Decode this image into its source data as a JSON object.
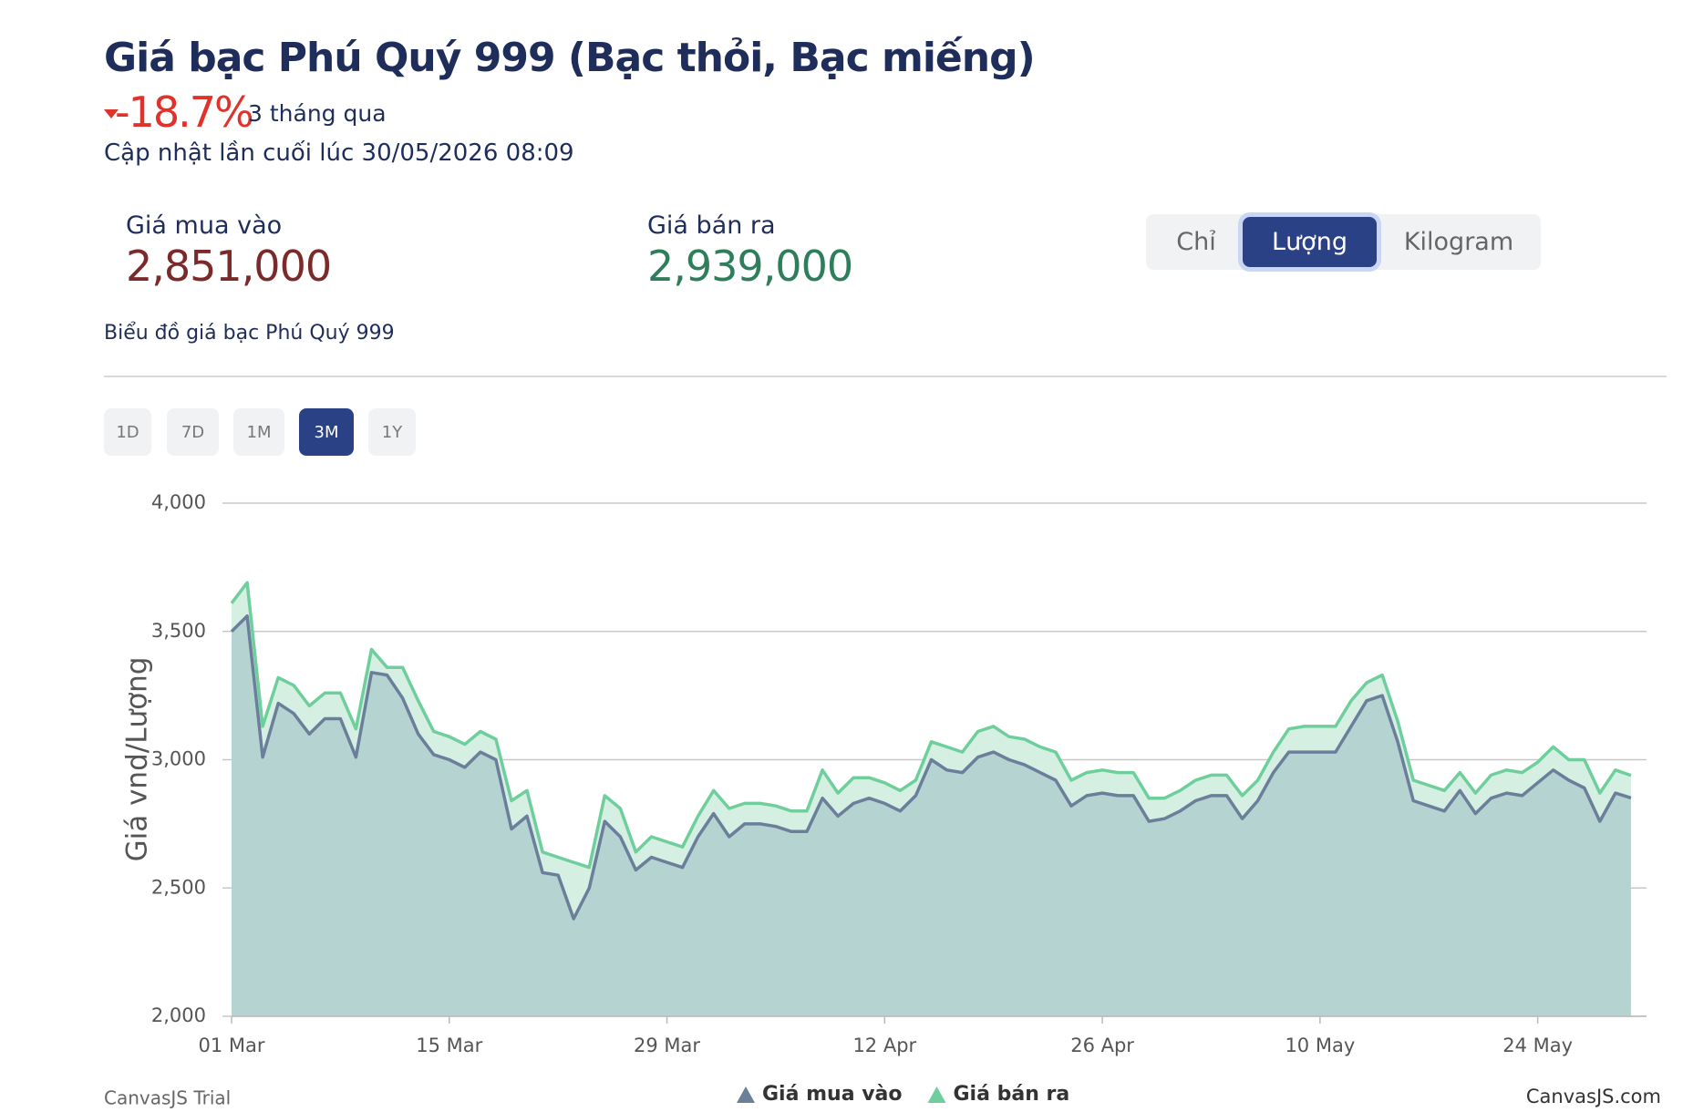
{
  "header": {
    "title": "Giá bạc Phú Quý 999 (Bạc thỏi, Bạc miếng)",
    "change": "-18.7%",
    "period": "3 tháng qua",
    "updated": "Cập nhật lần cuối lúc 30/05/2026 08:09"
  },
  "prices": {
    "buy_label": "Giá mua vào",
    "buy_value": "2,851,000",
    "sell_label": "Giá bán ra",
    "sell_value": "2,939,000"
  },
  "unit_tabs": {
    "items": [
      "Chỉ",
      "Lượng",
      "Kilogram"
    ],
    "active": 1
  },
  "chart_subtitle": "Biểu đồ giá bạc Phú Quý 999",
  "range_tabs": {
    "items": [
      "1D",
      "7D",
      "1M",
      "3M",
      "1Y"
    ],
    "active": 3
  },
  "chart_data": {
    "type": "area",
    "y_label": "Giá vnd/Lượng",
    "x": [
      "01 Mar",
      "02 Mar",
      "03 Mar",
      "04 Mar",
      "05 Mar",
      "06 Mar",
      "07 Mar",
      "08 Mar",
      "09 Mar",
      "10 Mar",
      "11 Mar",
      "12 Mar",
      "13 Mar",
      "14 Mar",
      "15 Mar",
      "16 Mar",
      "17 Mar",
      "18 Mar",
      "19 Mar",
      "20 Mar",
      "21 Mar",
      "22 Mar",
      "23 Mar",
      "24 Mar",
      "25 Mar",
      "26 Mar",
      "27 Mar",
      "28 Mar",
      "29 Mar",
      "30 Mar",
      "31 Mar",
      "01 Apr",
      "02 Apr",
      "03 Apr",
      "04 Apr",
      "05 Apr",
      "06 Apr",
      "07 Apr",
      "08 Apr",
      "09 Apr",
      "10 Apr",
      "11 Apr",
      "12 Apr",
      "13 Apr",
      "14 Apr",
      "15 Apr",
      "16 Apr",
      "17 Apr",
      "18 Apr",
      "19 Apr",
      "20 Apr",
      "21 Apr",
      "22 Apr",
      "23 Apr",
      "24 Apr",
      "25 Apr",
      "26 Apr",
      "27 Apr",
      "28 Apr",
      "29 Apr",
      "30 Apr",
      "01 May",
      "02 May",
      "03 May",
      "04 May",
      "05 May",
      "06 May",
      "07 May",
      "08 May",
      "09 May",
      "10 May",
      "11 May",
      "12 May",
      "13 May",
      "14 May",
      "15 May",
      "16 May",
      "17 May",
      "18 May",
      "19 May",
      "20 May",
      "21 May",
      "22 May",
      "23 May",
      "24 May",
      "25 May",
      "26 May",
      "27 May",
      "28 May",
      "29 May",
      "30 May"
    ],
    "series": [
      {
        "name": "Giá mua vào",
        "color": "#6b7f9b",
        "fill": "#b5d4d1",
        "values": [
          3500,
          3560,
          3010,
          3220,
          3180,
          3100,
          3160,
          3160,
          3010,
          3340,
          3330,
          3240,
          3100,
          3020,
          3000,
          2970,
          3030,
          3000,
          2730,
          2780,
          2560,
          2550,
          2380,
          2500,
          2760,
          2700,
          2570,
          2620,
          2600,
          2580,
          2700,
          2790,
          2700,
          2750,
          2750,
          2740,
          2720,
          2720,
          2850,
          2780,
          2830,
          2850,
          2830,
          2800,
          2860,
          3000,
          2960,
          2950,
          3010,
          3030,
          3000,
          2980,
          2950,
          2920,
          2820,
          2860,
          2870,
          2860,
          2860,
          2760,
          2770,
          2800,
          2840,
          2860,
          2860,
          2770,
          2840,
          2950,
          3030,
          3030,
          3030,
          3030,
          3130,
          3230,
          3250,
          3070,
          2840,
          2820,
          2800,
          2880,
          2790,
          2850,
          2870,
          2860,
          2910,
          2960,
          2920,
          2890,
          2760,
          2870,
          2851
        ]
      },
      {
        "name": "Giá bán ra",
        "color": "#6fcf9c",
        "fill": "#d5efe2",
        "values": [
          3610,
          3690,
          3130,
          3320,
          3290,
          3210,
          3260,
          3260,
          3120,
          3430,
          3360,
          3360,
          3230,
          3110,
          3090,
          3060,
          3110,
          3080,
          2840,
          2880,
          2640,
          2620,
          2600,
          2580,
          2860,
          2810,
          2640,
          2700,
          2680,
          2660,
          2780,
          2880,
          2810,
          2830,
          2830,
          2820,
          2800,
          2800,
          2960,
          2870,
          2930,
          2930,
          2910,
          2880,
          2920,
          3070,
          3050,
          3030,
          3110,
          3130,
          3090,
          3080,
          3050,
          3030,
          2920,
          2950,
          2960,
          2950,
          2950,
          2850,
          2850,
          2880,
          2920,
          2940,
          2940,
          2860,
          2920,
          3030,
          3120,
          3130,
          3130,
          3130,
          3230,
          3300,
          3330,
          3150,
          2920,
          2900,
          2880,
          2950,
          2870,
          2940,
          2960,
          2950,
          2990,
          3050,
          3000,
          3000,
          2870,
          2960,
          2939
        ]
      }
    ],
    "xlim": [
      "01 Mar",
      "31 May"
    ],
    "xticks": [
      "01 Mar",
      "15 Mar",
      "29 Mar",
      "12 Apr",
      "26 Apr",
      "10 May",
      "24 May"
    ],
    "ylim": [
      2000,
      4000
    ],
    "yticks": [
      {
        "value": 2000,
        "label": "2,000"
      },
      {
        "value": 2500,
        "label": "2,500"
      },
      {
        "value": 3000,
        "label": "3,000"
      },
      {
        "value": 3500,
        "label": "3,500"
      },
      {
        "value": 4000,
        "label": "4,000"
      }
    ],
    "grid": true
  },
  "credits": {
    "left": "CanvasJS Trial",
    "right": "CanvasJS.com"
  }
}
